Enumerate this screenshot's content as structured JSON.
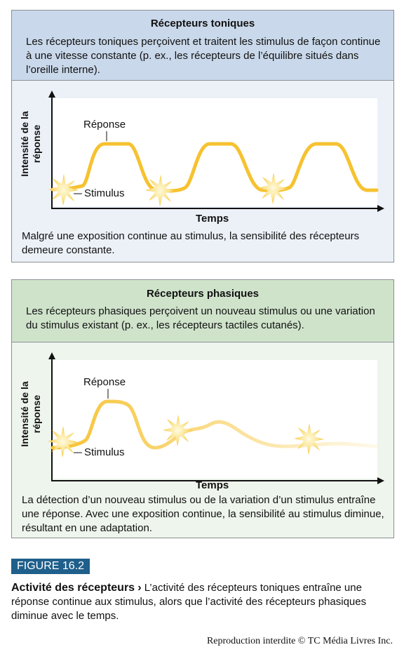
{
  "tonic": {
    "title": "Récepteurs toniques",
    "description": "Les récepteurs toniques perçoivent et traitent les stimulus de façon continue à une vitesse constante (p. ex., les récepteurs de l’équilibre situés dans l’oreille interne).",
    "y_axis_label": "Intensité de la réponse",
    "x_axis_label": "Temps",
    "response_label": "Réponse",
    "stimulus_label": "Stimulus",
    "note": "Malgré une exposition continue au stimulus, la sensibilité des récepteurs demeure constante."
  },
  "phasic": {
    "title": "Récepteurs phasiques",
    "description": "Les récepteurs phasiques perçoivent un nouveau stimulus ou une variation du stimulus existant (p. ex., les récepteurs tactiles cutanés).",
    "y_axis_label": "Intensité de la réponse",
    "x_axis_label": "Temps",
    "response_label": "Réponse",
    "stimulus_label": "Stimulus",
    "note": "La détection d’un nouveau stimulus ou de la variation d’un stimulus entraîne une réponse. Avec une exposition continue, la sensibilité au stimulus diminue, résultant en une adaptation."
  },
  "figure": {
    "label": "FIGURE 16.2",
    "caption_title": "Activité des récepteurs",
    "caption_arrow": "›",
    "caption_text": "L’activité des récepteurs toniques entraîne une réponse continue aux stimulus, alors que l’activité des récepteurs phasiques diminue avec le temps."
  },
  "copyright": "Reproduction interdite © TC Média Livres Inc.",
  "colors": {
    "tonic_header": "#c9d8ea",
    "phasic_header": "#cfe3cb",
    "curve": "#f6c230",
    "figure_label_bg": "#1f5f8b"
  }
}
